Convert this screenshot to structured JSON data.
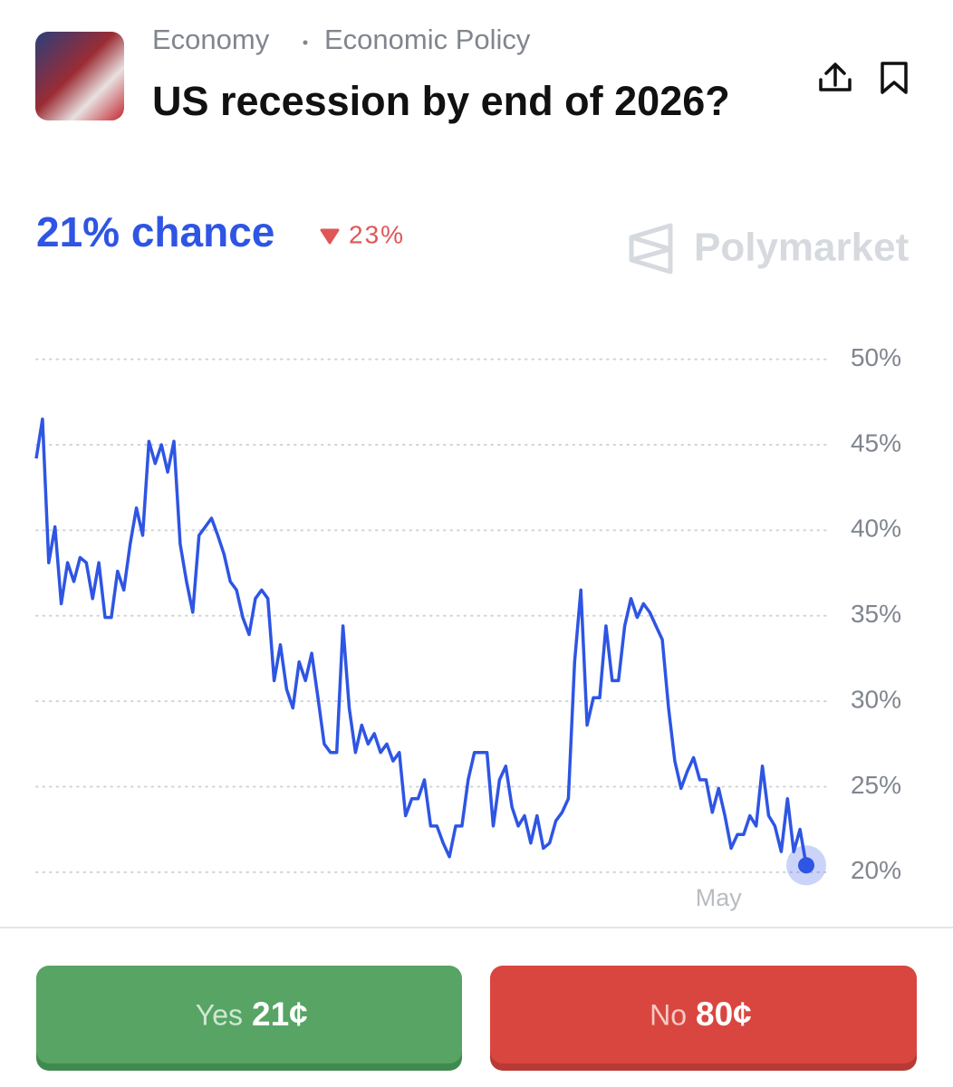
{
  "header": {
    "breadcrumb": [
      "Economy",
      "Economic Policy"
    ],
    "title": "US recession by end of 2026?"
  },
  "summary": {
    "chance": "21% chance",
    "change": "23%",
    "brand": "Polymarket"
  },
  "chart_data": {
    "type": "line",
    "series": [
      {
        "color": "#2e55e3",
        "values": [
          44.2,
          46.5,
          38.1,
          40.2,
          35.7,
          38.1,
          37,
          38.4,
          38.1,
          36,
          38.1,
          34.9,
          34.9,
          37.6,
          36.5,
          39.2,
          41.3,
          39.7,
          45.2,
          43.9,
          45,
          43.4,
          45.2,
          39.2,
          37,
          35.2,
          39.7,
          40.2,
          40.7,
          39.7,
          38.6,
          37,
          36.5,
          34.9,
          33.9,
          36,
          36.5,
          36,
          31.2,
          33.3,
          30.7,
          29.6,
          32.3,
          31.2,
          32.8,
          30.2,
          27.5,
          27,
          27,
          34.4,
          29.6,
          27,
          28.6,
          27.5,
          28.1,
          27,
          27.5,
          26.5,
          27,
          23.3,
          24.3,
          24.3,
          25.4,
          22.7,
          22.7,
          21.7,
          20.9,
          22.7,
          22.7,
          25.4,
          27,
          27,
          27,
          22.7,
          25.4,
          26.2,
          23.8,
          22.7,
          23.3,
          21.7,
          23.3,
          21.4,
          21.7,
          23,
          23.5,
          24.3,
          32.3,
          36.5,
          28.6,
          30.2,
          30.2,
          34.4,
          31.2,
          31.2,
          34.4,
          36,
          34.9,
          35.7,
          35.2,
          34.4,
          33.6,
          29.6,
          26.5,
          24.9,
          25.9,
          26.7,
          25.4,
          25.4,
          23.5,
          24.9,
          23.3,
          21.4,
          22.2,
          22.2,
          23.3,
          22.7,
          26.2,
          23.3,
          22.7,
          21.2,
          24.3,
          21.2,
          22.5,
          20.4
        ]
      }
    ],
    "xlim": [
      0,
      123
    ],
    "xticks": [
      {
        "value": 109,
        "label": "May"
      }
    ],
    "ylim": [
      17.5,
      53
    ],
    "yticks": [
      {
        "value": 20,
        "label": "20%"
      },
      {
        "value": 25,
        "label": "25%"
      },
      {
        "value": 30,
        "label": "30%"
      },
      {
        "value": 35,
        "label": "35%"
      },
      {
        "value": 40,
        "label": "40%"
      },
      {
        "value": 45,
        "label": "45%"
      },
      {
        "value": 50,
        "label": "50%"
      }
    ],
    "grid": true
  },
  "buttons": {
    "yes": {
      "label": "Yes",
      "price": "21¢"
    },
    "no": {
      "label": "No",
      "price": "80¢"
    }
  }
}
